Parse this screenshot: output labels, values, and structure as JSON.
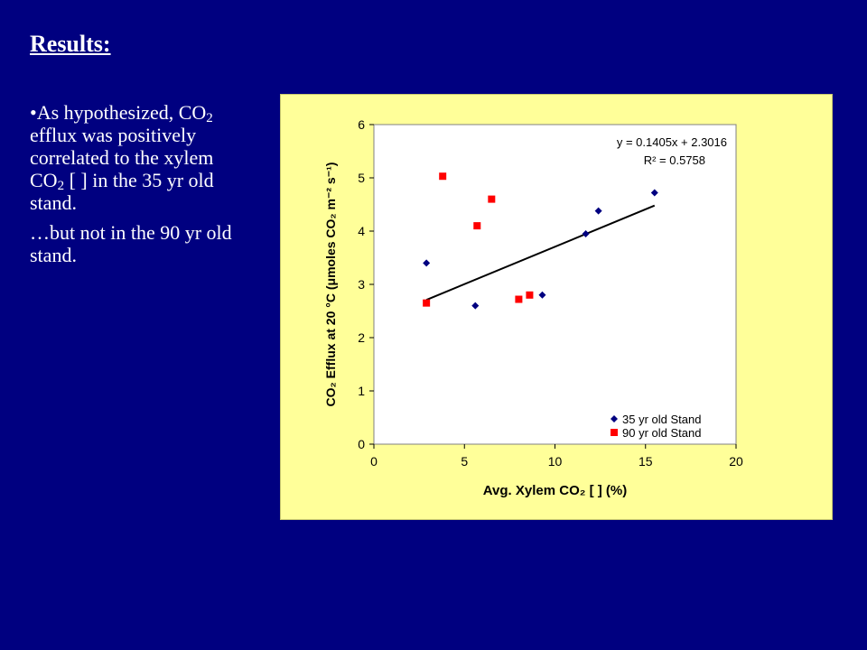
{
  "slide": {
    "title": "Results:",
    "bullet1_pre": "•As hypothesized, CO",
    "bullet1_sub": "2",
    "bullet1_mid": " efflux was positively correlated to the xylem CO",
    "bullet1_sub2": "2",
    "bullet1_post": " [ ] in the 35 yr old stand.",
    "bullet2": "…but not in the 90 yr old stand."
  },
  "colors": {
    "background": "#000080",
    "plot_bg": "#ffff99",
    "series_35": "#000080",
    "series_90": "#ff0000",
    "trendline": "#000000"
  },
  "chart_data": {
    "type": "scatter",
    "xlabel": "Avg. Xylem CO₂ [ ] (%)",
    "ylabel": "CO₂ Efflux at 20 °C (μmoles CO₂ m⁻² s⁻¹)",
    "xlim": [
      0,
      20
    ],
    "ylim": [
      0,
      6
    ],
    "xticks": [
      0,
      5,
      10,
      15,
      20
    ],
    "yticks": [
      0,
      1,
      2,
      3,
      4,
      5,
      6
    ],
    "grid": false,
    "legend_position": "bottom-right",
    "equation": "y = 0.1405x + 2.3016",
    "r_squared": "R² = 0.5758",
    "trendline": {
      "slope": 0.1405,
      "intercept": 2.3016,
      "x_range": [
        2.9,
        15.5
      ]
    },
    "series": [
      {
        "name": "35 yr old Stand",
        "marker": "diamond",
        "points": [
          [
            2.9,
            3.4
          ],
          [
            5.6,
            2.6
          ],
          [
            9.3,
            2.8
          ],
          [
            11.7,
            3.95
          ],
          [
            12.4,
            4.38
          ],
          [
            15.5,
            4.72
          ]
        ]
      },
      {
        "name": "90 yr old Stand",
        "marker": "square",
        "points": [
          [
            2.9,
            2.65
          ],
          [
            3.8,
            5.03
          ],
          [
            5.7,
            4.1
          ],
          [
            6.5,
            4.6
          ],
          [
            8.0,
            2.72
          ],
          [
            8.6,
            2.8
          ]
        ]
      }
    ]
  }
}
